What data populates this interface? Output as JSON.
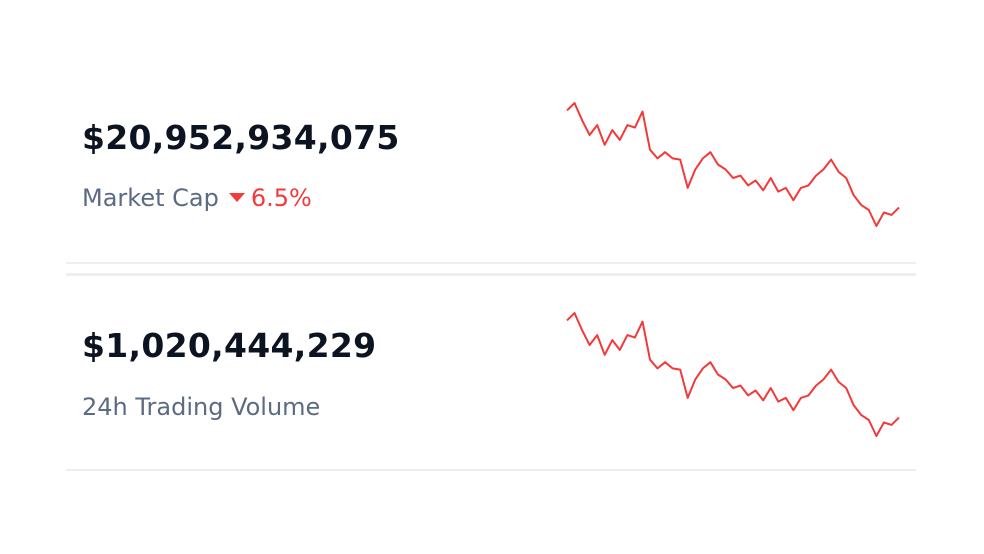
{
  "cards": [
    {
      "value": "$20,952,934,075",
      "label": "Market Cap",
      "change": "6.5%",
      "change_color": "#f23a3a",
      "sparkline": {
        "color": "#f23a3a",
        "values": [
          94,
          100,
          86,
          74,
          82,
          66,
          78,
          70,
          82,
          80,
          93,
          62,
          55,
          60,
          55,
          54,
          31,
          46,
          55,
          60,
          50,
          46,
          39,
          41,
          33,
          37,
          29,
          39,
          28,
          31,
          21,
          31,
          33,
          41,
          46,
          54,
          44,
          39,
          25,
          17,
          13,
          0,
          11,
          9,
          15
        ]
      }
    },
    {
      "value": "$1,020,444,229",
      "label": "24h Trading Volume",
      "sparkline": {
        "color": "#f23a3a",
        "values": [
          94,
          100,
          86,
          74,
          82,
          66,
          78,
          70,
          82,
          80,
          93,
          62,
          55,
          60,
          55,
          54,
          31,
          46,
          55,
          60,
          50,
          46,
          39,
          41,
          33,
          37,
          29,
          39,
          28,
          31,
          21,
          31,
          33,
          41,
          46,
          54,
          44,
          39,
          25,
          17,
          13,
          0,
          11,
          9,
          15
        ]
      }
    }
  ]
}
